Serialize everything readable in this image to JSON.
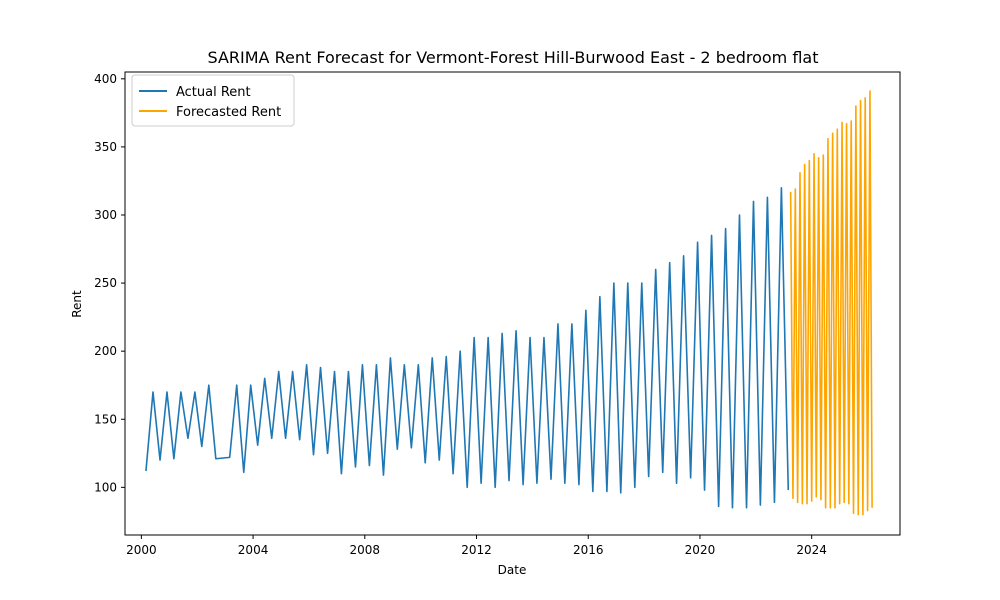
{
  "chart_data": {
    "type": "line",
    "title": "SARIMA Rent Forecast for Vermont-Forest Hill-Burwood East - 2 bedroom flat",
    "xlabel": "Date",
    "ylabel": "Rent",
    "xlim": [
      "1999-06-01",
      "2027-03-01"
    ],
    "ylim": [
      65,
      405
    ],
    "x_ticks": [
      "2000-01-01",
      "2004-01-01",
      "2008-01-01",
      "2012-01-01",
      "2016-01-01",
      "2020-01-01",
      "2024-01-01"
    ],
    "x_tick_labels": [
      "2000",
      "2004",
      "2008",
      "2012",
      "2016",
      "2020",
      "2024"
    ],
    "y_ticks": [
      100,
      150,
      200,
      250,
      300,
      350,
      400
    ],
    "grid": false,
    "legend": {
      "position": "top-left"
    },
    "colors": {
      "actual": "#1f77b4",
      "forecast": "#ffa500"
    },
    "series": [
      {
        "name": "Actual Rent",
        "color": "#1f77b4",
        "points": [
          [
            "2000-03-01",
            112
          ],
          [
            "2000-06-01",
            170
          ],
          [
            "2000-09-01",
            120
          ],
          [
            "2000-12-01",
            170
          ],
          [
            "2001-03-01",
            121
          ],
          [
            "2001-06-01",
            170
          ],
          [
            "2001-09-01",
            136
          ],
          [
            "2001-12-01",
            170
          ],
          [
            "2002-03-01",
            130
          ],
          [
            "2002-06-01",
            175
          ],
          [
            "2002-09-01",
            121
          ],
          [
            "2003-03-01",
            122
          ],
          [
            "2003-06-01",
            175
          ],
          [
            "2003-09-01",
            111
          ],
          [
            "2003-12-01",
            175
          ],
          [
            "2004-03-01",
            131
          ],
          [
            "2004-06-01",
            180
          ],
          [
            "2004-09-01",
            136
          ],
          [
            "2004-12-01",
            185
          ],
          [
            "2005-03-01",
            136
          ],
          [
            "2005-06-01",
            185
          ],
          [
            "2005-09-01",
            135
          ],
          [
            "2005-12-01",
            190
          ],
          [
            "2006-03-01",
            124
          ],
          [
            "2006-06-01",
            188
          ],
          [
            "2006-09-01",
            125
          ],
          [
            "2006-12-01",
            185
          ],
          [
            "2007-03-01",
            110
          ],
          [
            "2007-06-01",
            185
          ],
          [
            "2007-09-01",
            115
          ],
          [
            "2007-12-01",
            190
          ],
          [
            "2008-03-01",
            116
          ],
          [
            "2008-06-01",
            190
          ],
          [
            "2008-09-01",
            109
          ],
          [
            "2008-12-01",
            195
          ],
          [
            "2009-03-01",
            128
          ],
          [
            "2009-06-01",
            190
          ],
          [
            "2009-09-01",
            129
          ],
          [
            "2009-12-01",
            190
          ],
          [
            "2010-03-01",
            118
          ],
          [
            "2010-06-01",
            195
          ],
          [
            "2010-09-01",
            120
          ],
          [
            "2010-12-01",
            196
          ],
          [
            "2011-03-01",
            110
          ],
          [
            "2011-06-01",
            200
          ],
          [
            "2011-09-01",
            100
          ],
          [
            "2011-12-01",
            210
          ],
          [
            "2012-03-01",
            103
          ],
          [
            "2012-06-01",
            210
          ],
          [
            "2012-09-01",
            100
          ],
          [
            "2012-12-01",
            213
          ],
          [
            "2013-03-01",
            105
          ],
          [
            "2013-06-01",
            215
          ],
          [
            "2013-09-01",
            102
          ],
          [
            "2013-12-01",
            210
          ],
          [
            "2014-03-01",
            103
          ],
          [
            "2014-06-01",
            210
          ],
          [
            "2014-09-01",
            106
          ],
          [
            "2014-12-01",
            220
          ],
          [
            "2015-03-01",
            103
          ],
          [
            "2015-06-01",
            220
          ],
          [
            "2015-09-01",
            102
          ],
          [
            "2015-12-01",
            230
          ],
          [
            "2016-03-01",
            97
          ],
          [
            "2016-06-01",
            240
          ],
          [
            "2016-09-01",
            97
          ],
          [
            "2016-12-01",
            250
          ],
          [
            "2017-03-01",
            96
          ],
          [
            "2017-06-01",
            250
          ],
          [
            "2017-09-01",
            100
          ],
          [
            "2017-12-01",
            250
          ],
          [
            "2018-03-01",
            108
          ],
          [
            "2018-06-01",
            260
          ],
          [
            "2018-09-01",
            111
          ],
          [
            "2018-12-01",
            265
          ],
          [
            "2019-03-01",
            103
          ],
          [
            "2019-06-01",
            270
          ],
          [
            "2019-09-01",
            107
          ],
          [
            "2019-12-01",
            280
          ],
          [
            "2020-03-01",
            98
          ],
          [
            "2020-06-01",
            285
          ],
          [
            "2020-09-01",
            86
          ],
          [
            "2020-12-01",
            290
          ],
          [
            "2021-03-01",
            85
          ],
          [
            "2021-06-01",
            300
          ],
          [
            "2021-09-01",
            85
          ],
          [
            "2021-12-01",
            310
          ],
          [
            "2022-03-01",
            87
          ],
          [
            "2022-06-01",
            313
          ],
          [
            "2022-09-01",
            89
          ],
          [
            "2022-12-01",
            320
          ],
          [
            "2023-03-01",
            98
          ]
        ]
      },
      {
        "name": "Forecasted Rent",
        "color": "#ffa500",
        "points": [
          [
            "2023-04-01",
            317
          ],
          [
            "2023-05-01",
            92
          ],
          [
            "2023-06-01",
            319
          ],
          [
            "2023-07-01",
            89
          ],
          [
            "2023-08-01",
            331
          ],
          [
            "2023-09-01",
            88
          ],
          [
            "2023-10-01",
            337
          ],
          [
            "2023-11-01",
            88
          ],
          [
            "2023-12-01",
            340
          ],
          [
            "2024-01-01",
            90
          ],
          [
            "2024-02-01",
            345
          ],
          [
            "2024-03-01",
            93
          ],
          [
            "2024-04-01",
            342
          ],
          [
            "2024-05-01",
            91
          ],
          [
            "2024-06-01",
            344
          ],
          [
            "2024-07-01",
            85
          ],
          [
            "2024-08-01",
            356
          ],
          [
            "2024-09-01",
            85
          ],
          [
            "2024-10-01",
            360
          ],
          [
            "2024-11-01",
            85
          ],
          [
            "2024-12-01",
            363
          ],
          [
            "2025-01-01",
            88
          ],
          [
            "2025-02-01",
            368
          ],
          [
            "2025-03-01",
            89
          ],
          [
            "2025-04-01",
            367
          ],
          [
            "2025-05-01",
            88
          ],
          [
            "2025-06-01",
            369
          ],
          [
            "2025-07-01",
            81
          ],
          [
            "2025-08-01",
            380
          ],
          [
            "2025-09-01",
            80
          ],
          [
            "2025-10-01",
            384
          ],
          [
            "2025-11-01",
            80
          ],
          [
            "2025-12-01",
            386
          ],
          [
            "2026-01-01",
            83
          ],
          [
            "2026-02-01",
            391
          ],
          [
            "2026-03-01",
            85
          ]
        ]
      }
    ]
  }
}
